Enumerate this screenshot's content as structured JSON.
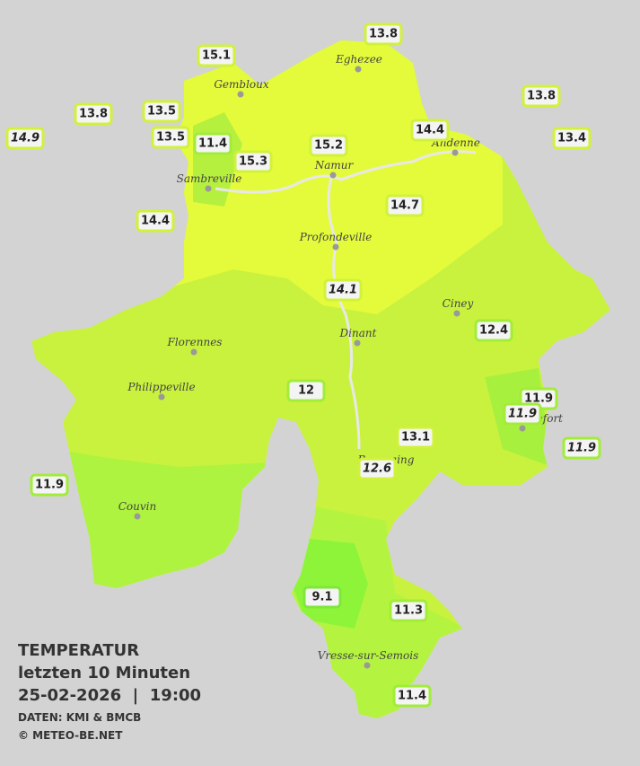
{
  "legend": {
    "title": "TEMPERATUR",
    "subtitle": "letzten 10 Minuten",
    "datetime": "25-02-2026  |  19:00",
    "source": "DATEN: KMI & BMCB",
    "copyright": "© METEO-BE.NET"
  },
  "towns": [
    "Eghezee",
    "Gembloux",
    "Andenne",
    "Namur",
    "Sambreville",
    "Profondeville",
    "Ciney",
    "Dinant",
    "Florennes",
    "Philippeville",
    "Rochefort",
    "Beauraing",
    "Couvin",
    "Vresse-sur-Semois"
  ],
  "stations": [
    13.8,
    15.1,
    13.8,
    13.8,
    13.5,
    14.9,
    13.5,
    11.4,
    15.2,
    14.4,
    13.4,
    15.3,
    14.4,
    14.7,
    14.1,
    12.4,
    12.0,
    11.9,
    11.9,
    11.9,
    13.1,
    12.6,
    11.9,
    9.1,
    11.3,
    11.4
  ]
}
